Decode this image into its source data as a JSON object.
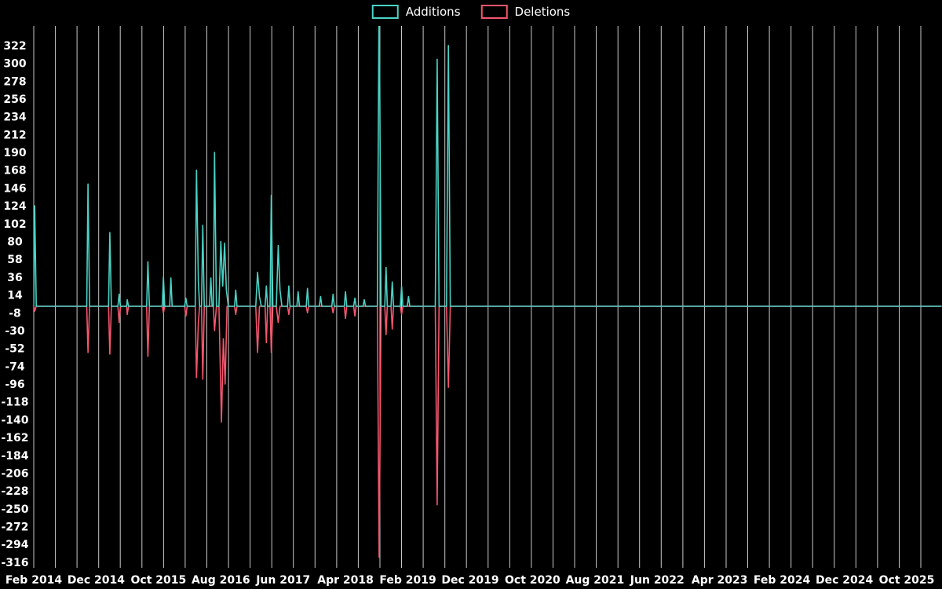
{
  "chart_data": {
    "type": "line",
    "title": "",
    "legend_position": "top-center",
    "grid": true,
    "colors": {
      "background": "#000000",
      "grid": "#c9c9c9",
      "text": "#ffffff",
      "additions": "#4bd2c4",
      "deletions": "#f4566e"
    },
    "x_axis": {
      "unit": "months since Feb 2014",
      "tick_interval_months": 10,
      "range_months": [
        0,
        140
      ],
      "tick_labels": [
        "Feb 2014",
        "Dec 2014",
        "Oct 2015",
        "Aug 2016",
        "Jun 2017",
        "Apr 2018",
        "Feb 2019",
        "Dec 2019",
        "Oct 2020",
        "Aug 2021",
        "Jun 2022",
        "Apr 2023",
        "Feb 2024",
        "Dec 2024",
        "Oct 2025"
      ]
    },
    "y_axis": {
      "min": -316,
      "max": 322,
      "step": 22,
      "ticks": [
        322,
        300,
        278,
        256,
        234,
        212,
        190,
        168,
        146,
        124,
        102,
        80,
        58,
        36,
        14,
        -8,
        -30,
        -52,
        -74,
        -96,
        -118,
        -140,
        -162,
        -184,
        -206,
        -228,
        -250,
        -272,
        -294,
        -316
      ]
    },
    "series": [
      {
        "name": "Additions",
        "color_key": "additions",
        "points": [
          [
            0,
            0
          ],
          [
            0.15,
            124
          ],
          [
            0.4,
            0
          ],
          [
            8.5,
            0
          ],
          [
            8.7,
            151
          ],
          [
            8.95,
            0
          ],
          [
            12.0,
            0
          ],
          [
            12.2,
            91
          ],
          [
            12.45,
            0
          ],
          [
            13.5,
            0
          ],
          [
            13.7,
            15
          ],
          [
            13.9,
            0
          ],
          [
            14.9,
            0
          ],
          [
            15.0,
            8
          ],
          [
            15.2,
            0
          ],
          [
            18.1,
            0
          ],
          [
            18.3,
            55
          ],
          [
            18.55,
            0
          ],
          [
            20.6,
            0
          ],
          [
            20.8,
            36
          ],
          [
            21.0,
            0
          ],
          [
            21.8,
            0
          ],
          [
            22.0,
            35
          ],
          [
            22.2,
            0
          ],
          [
            24.2,
            0
          ],
          [
            24.4,
            10
          ],
          [
            24.6,
            0
          ],
          [
            25.9,
            0
          ],
          [
            26.1,
            168
          ],
          [
            26.4,
            30
          ],
          [
            26.6,
            0
          ],
          [
            26.9,
            0
          ],
          [
            27.1,
            100
          ],
          [
            27.35,
            0
          ],
          [
            28.2,
            0
          ],
          [
            28.4,
            35
          ],
          [
            28.6,
            0
          ],
          [
            28.8,
            0
          ],
          [
            29.0,
            190
          ],
          [
            29.3,
            0
          ],
          [
            29.7,
            0
          ],
          [
            30.0,
            80
          ],
          [
            30.3,
            25
          ],
          [
            30.6,
            78
          ],
          [
            30.9,
            20
          ],
          [
            31.2,
            0
          ],
          [
            32.2,
            0
          ],
          [
            32.4,
            20
          ],
          [
            32.6,
            0
          ],
          [
            35.6,
            0
          ],
          [
            35.9,
            42
          ],
          [
            36.2,
            12
          ],
          [
            36.5,
            0
          ],
          [
            37.1,
            0
          ],
          [
            37.3,
            25
          ],
          [
            37.5,
            0
          ],
          [
            37.9,
            0
          ],
          [
            38.1,
            137
          ],
          [
            38.35,
            0
          ],
          [
            38.9,
            0
          ],
          [
            39.2,
            75
          ],
          [
            39.5,
            20
          ],
          [
            39.8,
            0
          ],
          [
            40.7,
            0
          ],
          [
            40.9,
            25
          ],
          [
            41.1,
            0
          ],
          [
            42.2,
            0
          ],
          [
            42.4,
            18
          ],
          [
            42.6,
            0
          ],
          [
            43.7,
            0
          ],
          [
            43.9,
            22
          ],
          [
            44.1,
            0
          ],
          [
            45.8,
            0
          ],
          [
            46.0,
            12
          ],
          [
            46.2,
            0
          ],
          [
            47.8,
            0
          ],
          [
            48.0,
            15
          ],
          [
            48.2,
            0
          ],
          [
            49.8,
            0
          ],
          [
            50.0,
            18
          ],
          [
            50.2,
            0
          ],
          [
            51.3,
            0
          ],
          [
            51.5,
            10
          ],
          [
            51.7,
            0
          ],
          [
            52.8,
            0
          ],
          [
            53.0,
            8
          ],
          [
            53.2,
            0
          ],
          [
            55.1,
            0
          ],
          [
            55.4,
            400
          ],
          [
            55.7,
            0
          ],
          [
            56.3,
            0
          ],
          [
            56.5,
            48
          ],
          [
            56.7,
            0
          ],
          [
            57.3,
            0
          ],
          [
            57.5,
            30
          ],
          [
            57.7,
            0
          ],
          [
            58.8,
            0
          ],
          [
            59.0,
            25
          ],
          [
            59.2,
            0
          ],
          [
            59.9,
            0
          ],
          [
            60.1,
            12
          ],
          [
            60.3,
            0
          ],
          [
            64.4,
            0
          ],
          [
            64.7,
            305
          ],
          [
            65.0,
            0
          ],
          [
            66.2,
            0
          ],
          [
            66.5,
            322
          ],
          [
            66.8,
            0
          ],
          [
            145.6,
            0
          ]
        ]
      },
      {
        "name": "Deletions",
        "color_key": "deletions",
        "points": [
          [
            0,
            0
          ],
          [
            0.15,
            -6
          ],
          [
            0.4,
            0
          ],
          [
            8.5,
            0
          ],
          [
            8.7,
            -57
          ],
          [
            8.95,
            0
          ],
          [
            12.0,
            0
          ],
          [
            12.2,
            -59
          ],
          [
            12.45,
            0
          ],
          [
            13.5,
            0
          ],
          [
            13.7,
            -20
          ],
          [
            13.9,
            0
          ],
          [
            14.9,
            0
          ],
          [
            15.0,
            -10
          ],
          [
            15.2,
            0
          ],
          [
            18.1,
            0
          ],
          [
            18.3,
            -62
          ],
          [
            18.55,
            0
          ],
          [
            20.6,
            0
          ],
          [
            20.8,
            -8
          ],
          [
            21.0,
            0
          ],
          [
            24.2,
            0
          ],
          [
            24.4,
            -12
          ],
          [
            24.6,
            0
          ],
          [
            25.9,
            0
          ],
          [
            26.1,
            -88
          ],
          [
            26.4,
            -20
          ],
          [
            26.6,
            0
          ],
          [
            26.9,
            0
          ],
          [
            27.1,
            -90
          ],
          [
            27.35,
            0
          ],
          [
            28.8,
            0
          ],
          [
            29.0,
            -30
          ],
          [
            29.3,
            0
          ],
          [
            29.7,
            0
          ],
          [
            30.1,
            -143
          ],
          [
            30.4,
            -40
          ],
          [
            30.7,
            -96
          ],
          [
            31.0,
            0
          ],
          [
            32.2,
            0
          ],
          [
            32.4,
            -10
          ],
          [
            32.6,
            0
          ],
          [
            35.6,
            0
          ],
          [
            35.9,
            -57
          ],
          [
            36.2,
            0
          ],
          [
            37.1,
            0
          ],
          [
            37.3,
            -45
          ],
          [
            37.5,
            0
          ],
          [
            37.9,
            0
          ],
          [
            38.1,
            -57
          ],
          [
            38.35,
            0
          ],
          [
            38.9,
            0
          ],
          [
            39.2,
            -20
          ],
          [
            39.5,
            0
          ],
          [
            40.7,
            0
          ],
          [
            40.9,
            -10
          ],
          [
            41.1,
            0
          ],
          [
            43.7,
            0
          ],
          [
            43.9,
            -8
          ],
          [
            44.1,
            0
          ],
          [
            47.8,
            0
          ],
          [
            48.0,
            -8
          ],
          [
            48.2,
            0
          ],
          [
            49.8,
            0
          ],
          [
            50.0,
            -15
          ],
          [
            50.2,
            0
          ],
          [
            51.3,
            0
          ],
          [
            51.5,
            -12
          ],
          [
            51.7,
            0
          ],
          [
            55.1,
            0
          ],
          [
            55.4,
            -310
          ],
          [
            55.7,
            0
          ],
          [
            56.3,
            0
          ],
          [
            56.5,
            -35
          ],
          [
            56.7,
            0
          ],
          [
            57.3,
            0
          ],
          [
            57.5,
            -28
          ],
          [
            57.7,
            0
          ],
          [
            58.8,
            0
          ],
          [
            59.0,
            -10
          ],
          [
            59.2,
            0
          ],
          [
            64.4,
            0
          ],
          [
            64.7,
            -245
          ],
          [
            65.0,
            0
          ],
          [
            66.2,
            0
          ],
          [
            66.5,
            -100
          ],
          [
            66.8,
            0
          ],
          [
            145.6,
            0
          ]
        ]
      }
    ]
  },
  "legend": {
    "additions_label": "Additions",
    "deletions_label": "Deletions"
  }
}
